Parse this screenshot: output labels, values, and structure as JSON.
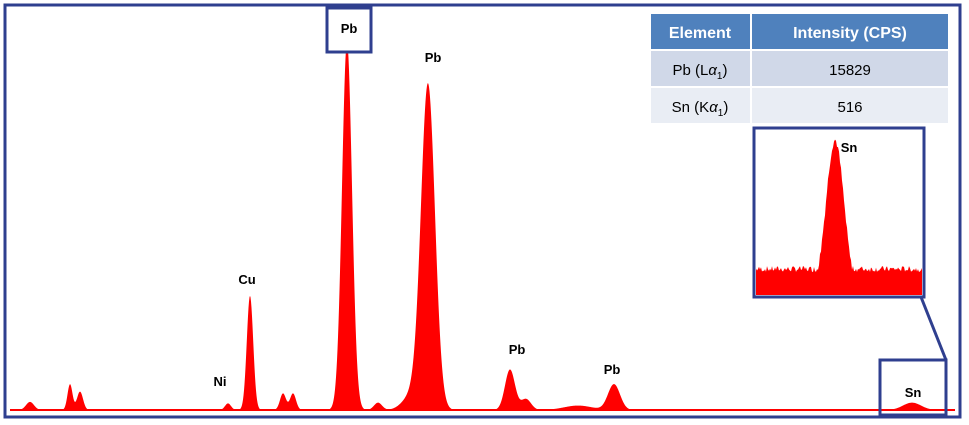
{
  "chart_data": {
    "type": "area",
    "title": "",
    "xlabel": "",
    "ylabel": "",
    "fill_color": "#ff0000",
    "frame_color": "#2f3f8f",
    "peaks": [
      {
        "element": "Ni",
        "label": "Ni",
        "relative_height": 0.03
      },
      {
        "element": "Cu",
        "label": "Cu",
        "relative_height": 0.31
      },
      {
        "element": "Pb",
        "label": "Pb",
        "relative_height": 1.0,
        "highlighted": true
      },
      {
        "element": "Pb",
        "label": "Pb",
        "relative_height": 0.88
      },
      {
        "element": "Pb",
        "label": "Pb",
        "relative_height": 0.11
      },
      {
        "element": "Pb",
        "label": "Pb",
        "relative_height": 0.07
      },
      {
        "element": "Sn",
        "label": "Sn",
        "relative_height": 0.02,
        "highlighted": true
      }
    ],
    "inset": {
      "label": "Sn",
      "description_peak": "Sn"
    }
  },
  "table": {
    "header": {
      "element": "Element",
      "intensity": "Intensity (CPS)"
    },
    "rows": [
      {
        "element": "Pb (L",
        "line_symbol": "α",
        "line_index": "1",
        "close": ")",
        "intensity": "15829"
      },
      {
        "element": "Sn (K",
        "line_symbol": "α",
        "line_index": "1",
        "close": ")",
        "intensity": "516"
      }
    ],
    "header_color": "#4f81bd",
    "row_color_1": "#d0d8e8",
    "row_color_2": "#e9edf4"
  }
}
